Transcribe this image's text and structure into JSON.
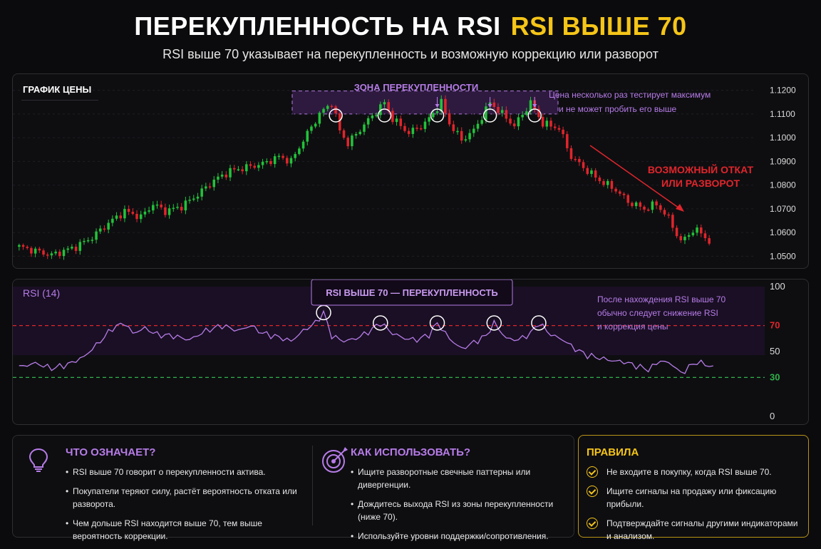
{
  "header": {
    "title_white": "ПЕРЕКУПЛЕННОСТЬ НА RSI",
    "title_yellow": "RSI ВЫШЕ 70",
    "subtitle": "RSI выше 70 указывает на перекупленность и возможную коррекцию или разворот"
  },
  "price_panel": {
    "label": "ГРАФИК ЦЕНЫ",
    "zone_label": "ЗОНА ПЕРЕКУПЛЕННОСТИ",
    "note_line1": "Цена несколько раз тестирует максимум",
    "note_line2": "и не может пробить его выше",
    "reversal_line1": "ВОЗМОЖНЫЙ ОТКАТ",
    "reversal_line2": "ИЛИ РАЗВОРОТ"
  },
  "rsi_panel": {
    "label": "RSI (14)",
    "box_label": "RSI ВЫШЕ 70 — ПЕРЕКУПЛЕННОСТЬ",
    "note_line1": "После нахождения RSI выше 70",
    "note_line2": "обычно следует снижение RSI",
    "note_line3": "и коррекция цены"
  },
  "colors": {
    "up": "#22c33a",
    "down": "#e0252b",
    "rsi_line": "#b77ce8",
    "purple_zone": "#3a1f4f",
    "yellow": "#f5c518",
    "red_level": "#e0252b",
    "green_level": "#2fb34a"
  },
  "chart_data": [
    {
      "type": "candlestick",
      "ylim": [
        1.048,
        1.122
      ],
      "y_ticks": [
        "1.1200",
        "1.1100",
        "1.1000",
        "1.0900",
        "1.0800",
        "1.0700",
        "1.0600",
        "1.0500"
      ],
      "y_tick_values": [
        1.12,
        1.11,
        1.1,
        1.09,
        1.08,
        1.07,
        1.06,
        1.05
      ],
      "overbought_zone": [
        1.11,
        1.1197
      ],
      "close_path": [
        [
          0,
          1.054
        ],
        [
          8,
          1.0505
        ],
        [
          14,
          1.054
        ],
        [
          18,
          1.058
        ],
        [
          22,
          1.064
        ],
        [
          26,
          1.069
        ],
        [
          30,
          1.0665
        ],
        [
          33,
          1.072
        ],
        [
          36,
          1.069
        ],
        [
          40,
          1.071
        ],
        [
          44,
          1.076
        ],
        [
          48,
          1.082
        ],
        [
          52,
          1.086
        ],
        [
          56,
          1.0875
        ],
        [
          60,
          1.089
        ],
        [
          64,
          1.092
        ],
        [
          67,
          1.09
        ],
        [
          70,
          1.099
        ],
        [
          74,
          1.11
        ],
        [
          77,
          1.1148
        ],
        [
          79,
          1.103
        ],
        [
          81,
          1.0975
        ],
        [
          85,
          1.1055
        ],
        [
          90,
          1.1148
        ],
        [
          92,
          1.108
        ],
        [
          96,
          1.102
        ],
        [
          100,
          1.106
        ],
        [
          104,
          1.1148
        ],
        [
          106,
          1.106
        ],
        [
          109,
          1.099
        ],
        [
          112,
          1.103
        ],
        [
          116,
          1.1148
        ],
        [
          119,
          1.11
        ],
        [
          122,
          1.105
        ],
        [
          126,
          1.1148
        ],
        [
          129,
          1.106
        ],
        [
          133,
          1.104
        ],
        [
          136,
          1.092
        ],
        [
          140,
          1.086
        ],
        [
          143,
          1.082
        ],
        [
          147,
          1.078
        ],
        [
          150,
          1.073
        ],
        [
          154,
          1.07
        ],
        [
          157,
          1.072
        ],
        [
          160,
          1.066
        ],
        [
          163,
          1.056
        ],
        [
          166,
          1.061
        ],
        [
          168,
          1.06
        ],
        [
          170,
          1.056
        ]
      ],
      "candles": 171,
      "top_tests": [
        78,
        90,
        103,
        116,
        127
      ]
    },
    {
      "type": "line",
      "ylim": [
        0,
        100
      ],
      "y_ticks": [
        "100",
        "70",
        "50",
        "30",
        "0"
      ],
      "y_tick_values": [
        100,
        70,
        50,
        30,
        0
      ],
      "levels": [
        70,
        30
      ],
      "series": [
        {
          "values": [
            [
              0,
              38
            ],
            [
              4,
              41
            ],
            [
              8,
              37
            ],
            [
              12,
              40
            ],
            [
              16,
              46
            ],
            [
              20,
              58
            ],
            [
              23,
              68
            ],
            [
              26,
              72
            ],
            [
              28,
              64
            ],
            [
              31,
              68
            ],
            [
              34,
              63
            ],
            [
              38,
              62
            ],
            [
              42,
              59
            ],
            [
              46,
              66
            ],
            [
              50,
              70
            ],
            [
              54,
              66
            ],
            [
              57,
              70
            ],
            [
              60,
              64
            ],
            [
              64,
              61
            ],
            [
              67,
              58
            ],
            [
              70,
              66
            ],
            [
              73,
              72
            ],
            [
              75,
              80
            ],
            [
              77,
              62
            ],
            [
              80,
              58
            ],
            [
              83,
              60
            ],
            [
              86,
              65
            ],
            [
              89,
              72
            ],
            [
              92,
              64
            ],
            [
              95,
              60
            ],
            [
              98,
              59
            ],
            [
              101,
              63
            ],
            [
              103,
              72
            ],
            [
              106,
              60
            ],
            [
              109,
              52
            ],
            [
              112,
              57
            ],
            [
              115,
              62
            ],
            [
              117,
              72
            ],
            [
              120,
              60
            ],
            [
              123,
              59
            ],
            [
              126,
              64
            ],
            [
              128,
              72
            ],
            [
              131,
              63
            ],
            [
              134,
              59
            ],
            [
              137,
              52
            ],
            [
              140,
              47
            ],
            [
              143,
              45
            ],
            [
              146,
              43
            ],
            [
              149,
              42
            ],
            [
              152,
              39
            ],
            [
              155,
              36
            ],
            [
              158,
              43
            ],
            [
              161,
              40
            ],
            [
              163,
              33
            ],
            [
              165,
              38
            ],
            [
              167,
              42
            ],
            [
              169,
              40
            ],
            [
              171,
              38
            ]
          ]
        }
      ],
      "peak_markers": [
        75,
        89,
        103,
        117,
        128
      ]
    }
  ],
  "cards": {
    "what": {
      "title": "ЧТО ОЗНАЧАЕТ?",
      "items": [
        "RSI выше 70 говорит о перекупленности актива.",
        "Покупатели теряют силу, растёт вероятность отката или разворота.",
        "Чем дольше RSI находится выше 70, тем выше вероятность коррекции."
      ]
    },
    "how": {
      "title": "КАК ИСПОЛЬЗОВАТЬ?",
      "items": [
        "Ищите разворотные свечные паттерны или дивергенции.",
        "Дождитесь выхода RSI из зоны перекупленности (ниже 70).",
        "Используйте уровни поддержки/сопротивления."
      ]
    },
    "rules": {
      "title": "ПРАВИЛА",
      "items": [
        "Не входите в покупку, когда RSI выше 70.",
        "Ищите сигналы на продажу или фиксацию прибыли.",
        "Подтверждайте сигналы другими индикаторами  и анализом."
      ]
    }
  },
  "icons": {
    "what_icon": "lightbulb-icon",
    "how_icon": "target-icon",
    "rules_icon": "check-circle-icon"
  }
}
